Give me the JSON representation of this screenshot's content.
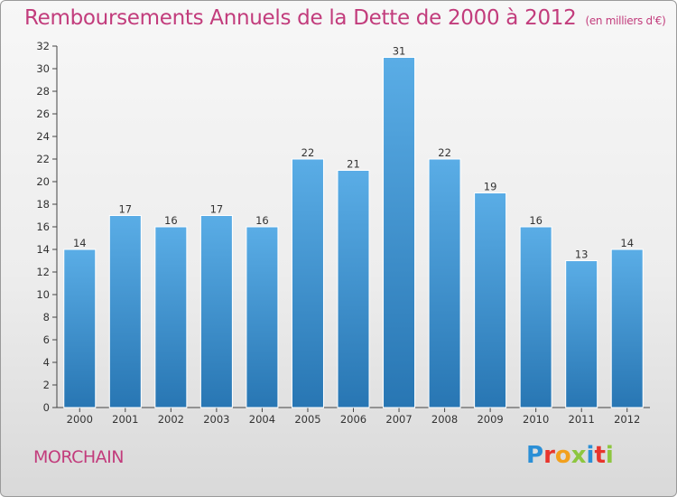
{
  "header": {
    "title": "Remboursements Annuels de la Dette de 2000 à 2012",
    "subtitle": "(en milliers d'€)"
  },
  "footer": {
    "city": "MORCHAIN",
    "logo": {
      "letters": [
        "P",
        "r",
        "o",
        "x",
        "i",
        "t",
        "i"
      ],
      "colors": [
        "#2b8fd6",
        "#e8352d",
        "#f2a01d",
        "#8dc63f",
        "#2b8fd6",
        "#e8352d",
        "#8dc63f"
      ]
    }
  },
  "chart_data": {
    "type": "bar",
    "categories": [
      "2000",
      "2001",
      "2002",
      "2003",
      "2004",
      "2005",
      "2006",
      "2007",
      "2008",
      "2009",
      "2010",
      "2011",
      "2012"
    ],
    "values": [
      14,
      17,
      16,
      17,
      16,
      22,
      21,
      31,
      22,
      19,
      16,
      13,
      14
    ],
    "title": "Remboursements Annuels de la Dette de 2000 à 2012",
    "subtitle": "(en milliers d'€)",
    "ylim": [
      0,
      32
    ],
    "yticks": [
      0,
      2,
      4,
      6,
      8,
      10,
      12,
      14,
      16,
      18,
      20,
      22,
      24,
      26,
      28,
      30,
      32
    ],
    "grid": false,
    "colors": {
      "bar_top": "#5aade6",
      "bar_bottom": "#2876b3",
      "accent": "#c23c7c"
    }
  }
}
